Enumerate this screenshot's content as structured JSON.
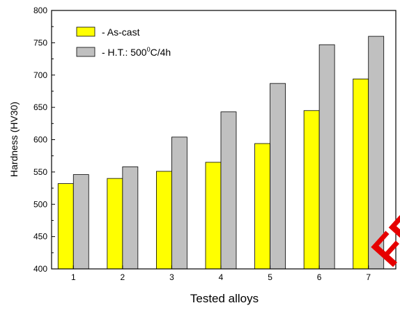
{
  "chart_data": {
    "type": "bar",
    "title": "",
    "xlabel": "Tested alloys",
    "ylabel": "Hardness (HV30)",
    "categories": [
      "1",
      "2",
      "3",
      "4",
      "5",
      "6",
      "7"
    ],
    "ylim": [
      400,
      800
    ],
    "yticks": [
      400,
      450,
      500,
      550,
      600,
      650,
      700,
      750,
      800
    ],
    "grid": false,
    "legend_position": "top-left",
    "series": [
      {
        "name": "- As-cast",
        "color": "#ffff00",
        "values": [
          532,
          540,
          551,
          565,
          594,
          645,
          694
        ]
      },
      {
        "name": "- H.T.: 500°C/4h",
        "color": "#c0c0c0",
        "values": [
          546,
          558,
          604,
          643,
          687,
          747,
          760
        ]
      }
    ]
  },
  "legend": {
    "as_cast": "- As-cast",
    "ht_prefix": "- H.T.: 500",
    "ht_sup": "0",
    "ht_suffix": "C/4h"
  },
  "watermark": "FREE"
}
